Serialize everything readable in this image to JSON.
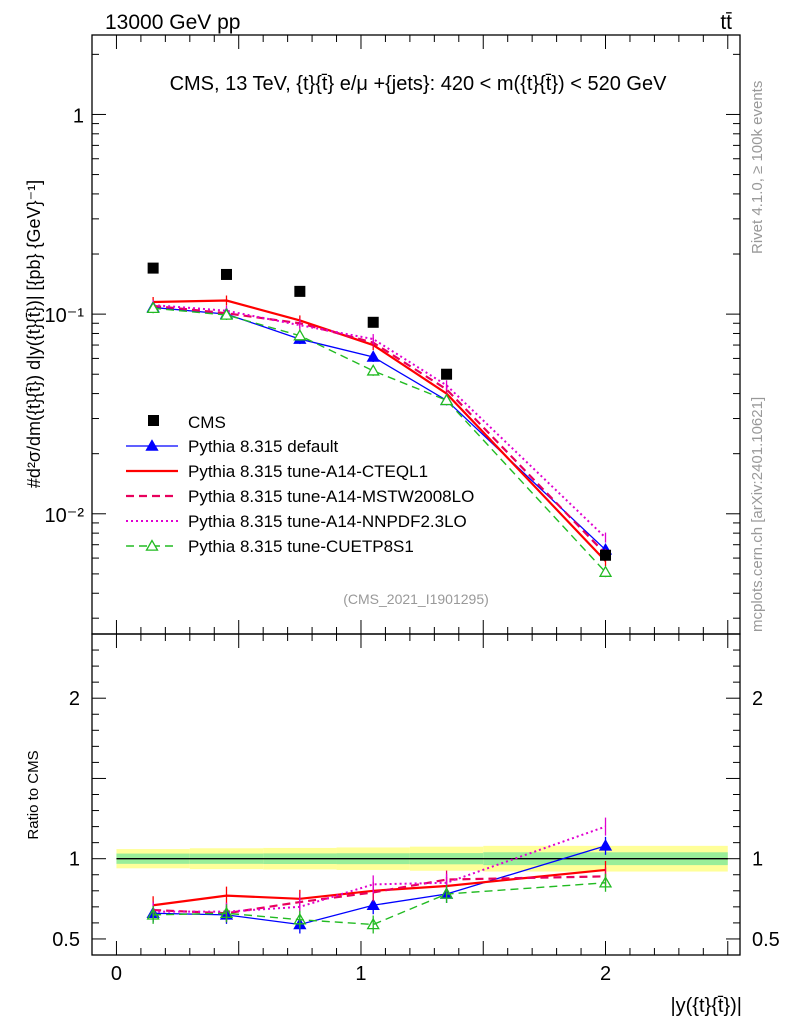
{
  "header": {
    "left": "13000 GeV pp",
    "right": "tt̄"
  },
  "side_labels": {
    "rivet": "Rivet 4.1.0, ≥ 100k events",
    "mcplots": "mcplots.cern.ch [arXiv:2401.10621]"
  },
  "chart_data": {
    "type": "line",
    "title": "CMS, 13 TeV, {t}{t̄} e/μ +{jets}: 420 < m({t}{t̄}) < 520 GeV",
    "analysis_tag": "(CMS_2021_I1901295)",
    "xlabel": "|y({t}{t̄})|",
    "ylabel": "#d²σ/dm({t}{t̄}) d|y({t}{t̄})| [{pb} {GeV}⁻¹]",
    "ylabel_ratio": "Ratio to CMS",
    "xlim": [
      -0.1,
      2.55
    ],
    "ylim": [
      0.0025,
      2.5
    ],
    "ylim_ratio": [
      0.4,
      2.4
    ],
    "x_ticks": [
      "0",
      "1",
      "2"
    ],
    "y_ticks": [
      "10⁻²",
      "10⁻¹",
      "1"
    ],
    "ratio_ticks": [
      "0.5",
      "1",
      "2"
    ],
    "x": [
      0.15,
      0.45,
      0.75,
      1.05,
      1.35,
      2.0
    ],
    "bin_edges": [
      0.0,
      0.3,
      0.6,
      0.9,
      1.2,
      1.5,
      2.5
    ],
    "data": {
      "name": "CMS",
      "values": [
        0.17,
        0.158,
        0.13,
        0.091,
        0.05,
        0.0062
      ]
    },
    "band": {
      "inner": [
        0.032,
        0.032,
        0.033,
        0.034,
        0.035,
        0.04
      ],
      "outer": [
        0.06,
        0.065,
        0.067,
        0.07,
        0.075,
        0.08
      ]
    },
    "series": [
      {
        "name": "Pythia 8.315 default",
        "color": "#0000ff",
        "style": "solid",
        "width": 1.3,
        "marker": "triangle-filled",
        "values": [
          0.108,
          0.1,
          0.075,
          0.061,
          0.037,
          0.0066
        ],
        "ratio": [
          0.66,
          0.65,
          0.59,
          0.71,
          0.78,
          1.08
        ]
      },
      {
        "name": "Pythia 8.315 tune-A14-CTEQL1",
        "color": "#ff0000",
        "style": "solid",
        "width": 2.2,
        "marker": "none",
        "values": [
          0.115,
          0.117,
          0.093,
          0.07,
          0.04,
          0.0058
        ],
        "ratio": [
          0.71,
          0.77,
          0.75,
          0.8,
          0.83,
          0.93
        ]
      },
      {
        "name": "Pythia 8.315 tune-A14-MSTW2008LO",
        "color": "#e8005c",
        "style": "dashed",
        "width": 2.2,
        "marker": "none",
        "values": [
          0.11,
          0.101,
          0.09,
          0.072,
          0.042,
          0.0063
        ],
        "ratio": [
          0.68,
          0.66,
          0.73,
          0.79,
          0.87,
          0.89
        ]
      },
      {
        "name": "Pythia 8.315 tune-A14-NNPDF2.3LO",
        "color": "#e000d0",
        "style": "dotted",
        "width": 2.0,
        "marker": "none",
        "values": [
          0.111,
          0.104,
          0.088,
          0.075,
          0.044,
          0.0076
        ],
        "ratio": [
          0.67,
          0.67,
          0.7,
          0.84,
          0.85,
          1.2
        ]
      },
      {
        "name": "Pythia 8.315 tune-CUETP8S1",
        "color": "#22bb22",
        "style": "dashed",
        "width": 1.4,
        "marker": "triangle-open",
        "values": [
          0.107,
          0.099,
          0.078,
          0.052,
          0.037,
          0.0051
        ],
        "ratio": [
          0.65,
          0.66,
          0.62,
          0.59,
          0.78,
          0.85
        ]
      }
    ]
  }
}
